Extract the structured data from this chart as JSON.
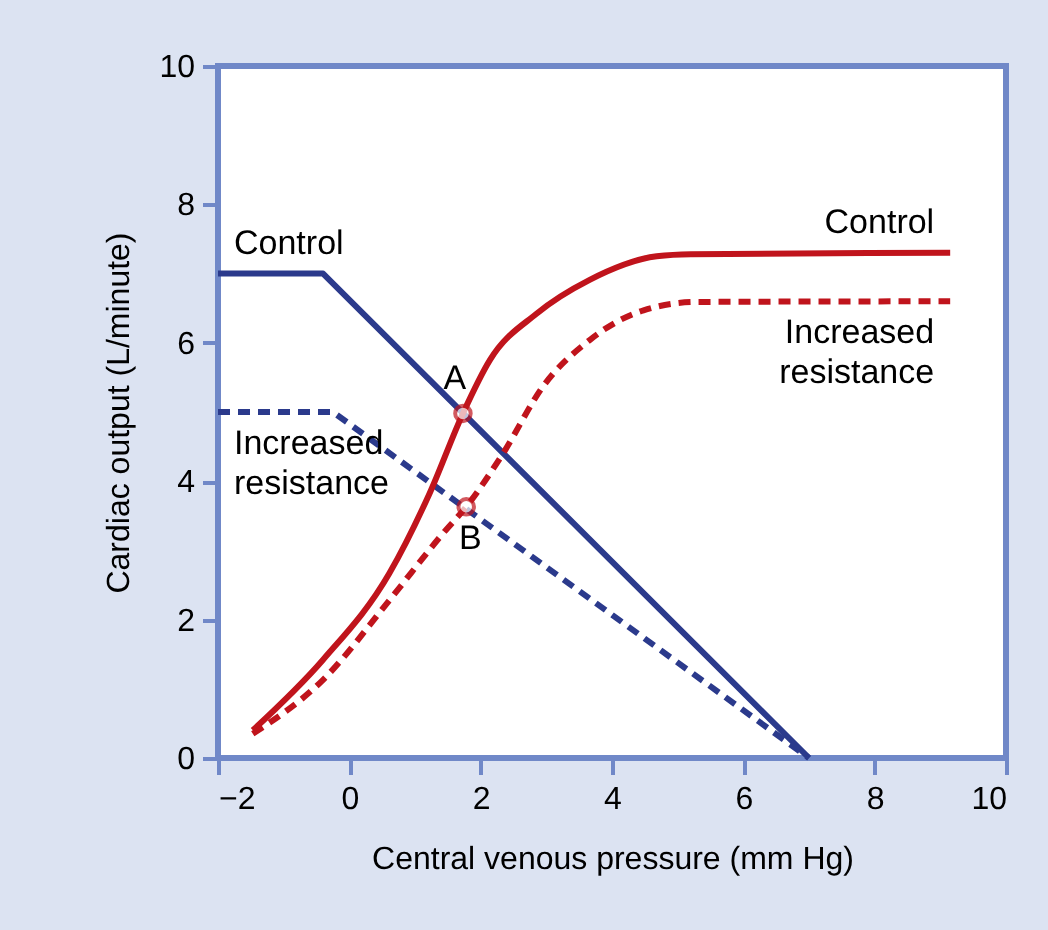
{
  "chart_data": {
    "type": "line",
    "xlabel": "Central venous pressure (mm Hg)",
    "ylabel": "Cardiac output (L/minute)",
    "xlim": [
      -2,
      10
    ],
    "ylim": [
      0,
      10
    ],
    "xticks": [
      {
        "value": -2,
        "label": "−2"
      },
      0,
      2,
      4,
      6,
      8,
      10
    ],
    "yticks": [
      0,
      2,
      4,
      6,
      8,
      10
    ],
    "grid": false,
    "series": [
      {
        "name": "Control",
        "color": "#2b3a8c",
        "line_style": "solid",
        "x": [
          -2,
          -0.4,
          7
        ],
        "values": [
          7,
          7,
          0
        ]
      },
      {
        "name": "Increased resistance",
        "color": "#2b3a8c",
        "line_style": "dashed",
        "x": [
          -2,
          -0.25,
          7
        ],
        "values": [
          5,
          5,
          0
        ]
      },
      {
        "name": "Control",
        "color": "#c0141c",
        "line_style": "solid",
        "x": [
          -1.47,
          -0.4,
          0.61,
          1.22,
          1.73,
          2.14,
          2.85,
          3.66,
          4.68,
          5.2,
          9.15
        ],
        "values": [
          0.4,
          1.42,
          2.67,
          3.82,
          4.98,
          5.75,
          6.42,
          6.91,
          7.25,
          7.28,
          7.3
        ]
      },
      {
        "name": "Increased resistance",
        "color": "#c0141c",
        "line_style": "dashed",
        "x": [
          -1.47,
          -0.4,
          0.61,
          1.43,
          1.78,
          2.34,
          2.95,
          3.66,
          4.48,
          5.29,
          9.15
        ],
        "values": [
          0.35,
          1.13,
          2.28,
          3.25,
          3.63,
          4.4,
          5.37,
          6.04,
          6.47,
          6.59,
          6.6
        ]
      },
      {
        "type": "scatter",
        "marker": "circle",
        "color": "#c0141c",
        "x": [
          1.73,
          1.78
        ],
        "values": [
          4.98,
          3.63
        ]
      }
    ],
    "annotations": [
      {
        "text": "A",
        "x": 1.73,
        "y": 4.98
      },
      {
        "text": "B",
        "x": 1.78,
        "y": 3.63
      }
    ]
  }
}
